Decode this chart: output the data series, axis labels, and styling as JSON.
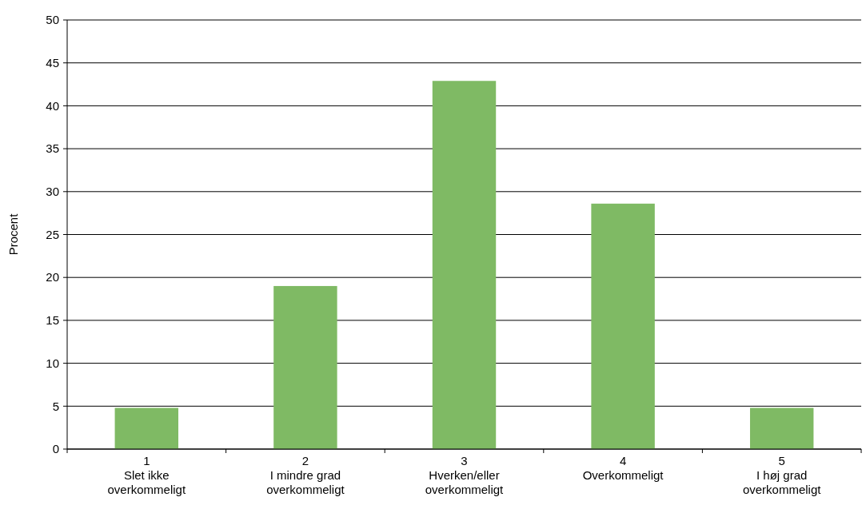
{
  "chart_data": {
    "type": "bar",
    "ylabel": "Procent",
    "categories": [
      "1\nSlet ikke\noverkommeligt",
      "2\nI mindre grad\noverkommeligt",
      "3\nHverken/eller\noverkommeligt",
      "4\nOverkommeligt",
      "5\nI høj grad\noverkommeligt"
    ],
    "values": [
      4.8,
      19,
      42.9,
      28.6,
      4.8
    ],
    "color": "#7fba64",
    "ylim": [
      0,
      50
    ],
    "yticks": [
      0,
      5,
      10,
      15,
      20,
      25,
      30,
      35,
      40,
      45,
      50
    ],
    "grid": "y"
  }
}
